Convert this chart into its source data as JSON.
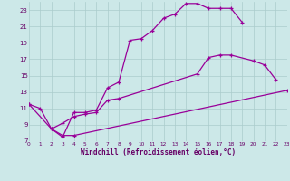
{
  "bg_color": "#cce8e8",
  "grid_color": "#aacccc",
  "line_color": "#990099",
  "xlabel": "Windchill (Refroidissement éolien,°C)",
  "xlim": [
    0,
    23
  ],
  "ylim": [
    7,
    24
  ],
  "yticks": [
    7,
    9,
    11,
    13,
    15,
    17,
    19,
    21,
    23
  ],
  "xticks": [
    0,
    1,
    2,
    3,
    4,
    5,
    6,
    7,
    8,
    9,
    10,
    11,
    12,
    13,
    14,
    15,
    16,
    17,
    18,
    19,
    20,
    21,
    22,
    23
  ],
  "series1_x": [
    0,
    1,
    2,
    3,
    4,
    5,
    6,
    7,
    8,
    9,
    10,
    11,
    12,
    13,
    14,
    15,
    16,
    17,
    18,
    19
  ],
  "series1_y": [
    11.5,
    11.0,
    8.5,
    7.5,
    10.5,
    10.5,
    10.8,
    13.5,
    14.2,
    19.3,
    19.5,
    20.5,
    22.0,
    22.5,
    23.8,
    23.8,
    23.2,
    23.2,
    23.2,
    21.5
  ],
  "series2_x": [
    0,
    2,
    3,
    4,
    5,
    6,
    7,
    8,
    15,
    16,
    17,
    18,
    20,
    21,
    22
  ],
  "series2_y": [
    11.5,
    8.5,
    9.2,
    10.0,
    10.3,
    10.5,
    12.0,
    12.2,
    15.2,
    17.2,
    17.5,
    17.5,
    16.8,
    16.3,
    14.5
  ],
  "series3_x": [
    2,
    3,
    4,
    23
  ],
  "series3_y": [
    8.5,
    7.7,
    7.7,
    13.2
  ]
}
